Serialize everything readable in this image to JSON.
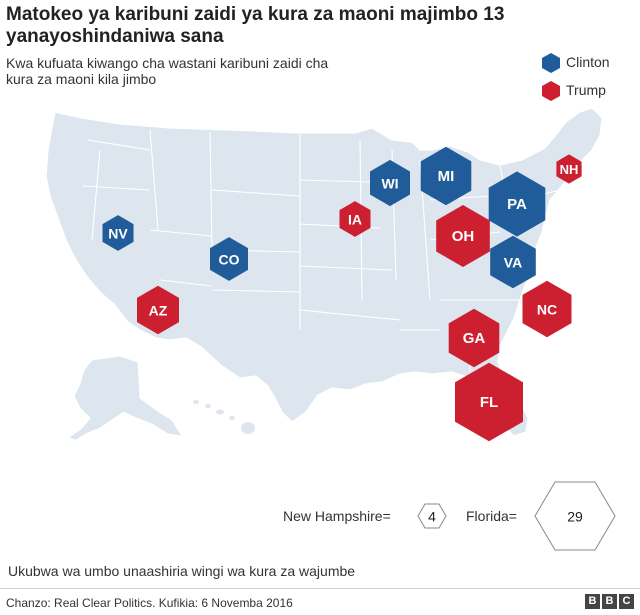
{
  "title": "Matokeo ya karibuni zaidi ya kura za maoni majimbo 13 yanayoshindaniwa sana",
  "subtitle": "Kwa kufuata kiwango cha wastani karibuni zaidi cha kura za maoni kila jimbo",
  "legend": [
    {
      "label": "Clinton",
      "color": "#1f5c99"
    },
    {
      "label": "Trump",
      "color": "#cc1f2f"
    }
  ],
  "states": [
    {
      "abbr": "NV",
      "winner": "Clinton",
      "votes": 6
    },
    {
      "abbr": "CO",
      "winner": "Clinton",
      "votes": 9
    },
    {
      "abbr": "AZ",
      "winner": "Trump",
      "votes": 11
    },
    {
      "abbr": "IA",
      "winner": "Trump",
      "votes": 6
    },
    {
      "abbr": "WI",
      "winner": "Clinton",
      "votes": 10
    },
    {
      "abbr": "MI",
      "winner": "Clinton",
      "votes": 16
    },
    {
      "abbr": "OH",
      "winner": "Trump",
      "votes": 18
    },
    {
      "abbr": "PA",
      "winner": "Clinton",
      "votes": 20
    },
    {
      "abbr": "VA",
      "winner": "Clinton",
      "votes": 13
    },
    {
      "abbr": "NH",
      "winner": "Trump",
      "votes": 4
    },
    {
      "abbr": "NC",
      "winner": "Trump",
      "votes": 15
    },
    {
      "abbr": "GA",
      "winner": "Trump",
      "votes": 16
    },
    {
      "abbr": "FL",
      "winner": "Trump",
      "votes": 29
    }
  ],
  "scale": {
    "nh_label": "New Hampshire=",
    "nh_value": "4",
    "fl_label": "Florida=",
    "fl_value": "29"
  },
  "note": "Ukubwa wa umbo unaashiria wingi wa kura za wajumbe",
  "source": "Chanzo: Real Clear Politics. Kufikia: 6 Novemba 2016",
  "brand": [
    "B",
    "B",
    "C"
  ],
  "colors": {
    "clinton": "#1f5c99",
    "trump": "#cc1f2f",
    "land": "#dde5ef",
    "border": "#ffffff"
  }
}
